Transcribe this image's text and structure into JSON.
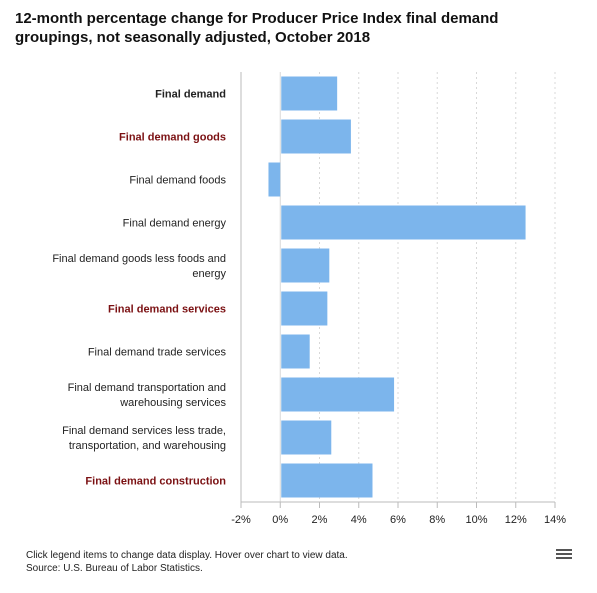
{
  "title": "12-month percentage change for Producer Price Index final demand groupings, not seasonally adjusted, October 2018",
  "footer": {
    "note": "Click legend items to change data display. Hover over chart to view data.",
    "source": "Source: U.S. Bureau of Labor Statistics."
  },
  "menu_icon": "hamburger-menu-icon",
  "colors": {
    "bar": "#7cb5ec",
    "label_default": "#222222",
    "label_highlight": "#7b1113",
    "grid": "#d8d8d8",
    "axis": "#bbbbbb"
  },
  "chart_data": {
    "type": "bar",
    "orientation": "horizontal",
    "categories": [
      {
        "label": [
          "Final demand"
        ],
        "bold": true,
        "color": "#222222"
      },
      {
        "label": [
          "Final demand goods"
        ],
        "bold": true,
        "color": "#7b1113"
      },
      {
        "label": [
          "Final demand foods"
        ],
        "bold": false,
        "color": "#222222"
      },
      {
        "label": [
          "Final demand energy"
        ],
        "bold": false,
        "color": "#222222"
      },
      {
        "label": [
          "Final demand goods less foods and",
          "energy"
        ],
        "bold": false,
        "color": "#222222"
      },
      {
        "label": [
          "Final demand services"
        ],
        "bold": true,
        "color": "#7b1113"
      },
      {
        "label": [
          "Final demand trade services"
        ],
        "bold": false,
        "color": "#222222"
      },
      {
        "label": [
          "Final demand transportation and",
          "warehousing services"
        ],
        "bold": false,
        "color": "#222222"
      },
      {
        "label": [
          "Final demand services less trade,",
          "transportation, and warehousing"
        ],
        "bold": false,
        "color": "#222222"
      },
      {
        "label": [
          "Final demand construction"
        ],
        "bold": true,
        "color": "#7b1113"
      }
    ],
    "values": [
      2.9,
      3.6,
      -0.6,
      12.5,
      2.5,
      2.4,
      1.5,
      5.8,
      2.6,
      4.7
    ],
    "xlim": [
      -2,
      14
    ],
    "xticks": [
      -2,
      0,
      2,
      4,
      6,
      8,
      10,
      12,
      14
    ],
    "xtick_labels": [
      "-2%",
      "0%",
      "2%",
      "4%",
      "6%",
      "8%",
      "10%",
      "12%",
      "14%"
    ],
    "grid": "vertical-dotted"
  }
}
